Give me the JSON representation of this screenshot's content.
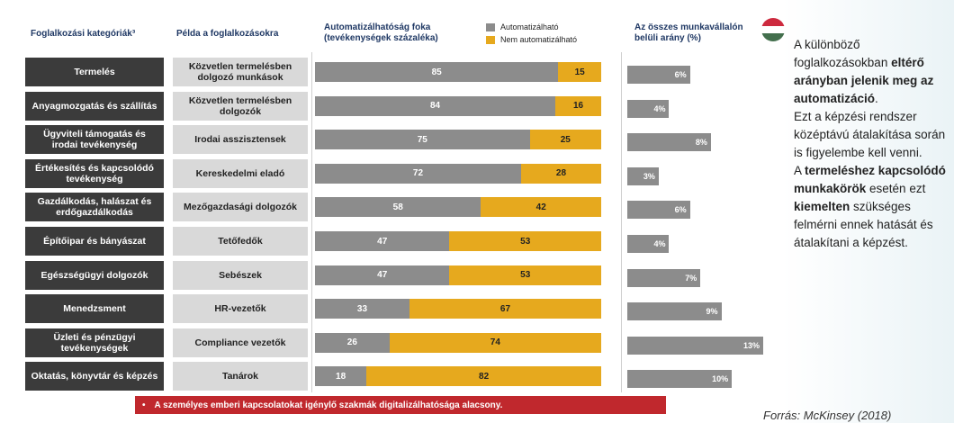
{
  "headers": {
    "category": "Foglalkozási kategóriák³",
    "example": "Példa a foglalkozásokra"
  },
  "chart_data": [
    {
      "type": "stacked_bar_h",
      "title": "Automatizálhatóság foka (tevékenységek százaléka)",
      "categories": [
        "Termelés",
        "Anyagmozgatás és szállítás",
        "Ügyviteli támogatás és irodai tevékenység",
        "Értékesítés és kapcsolódó tevékenység",
        "Gazdálkodás, halászat és erdőgazdálkodás",
        "Építőipar és bányászat",
        "Egészségügyi dolgozók",
        "Menedzsment",
        "Üzleti és pénzügyi tevékenységek",
        "Oktatás, könyvtár és képzés"
      ],
      "examples": [
        "Közvetlen termelésben dolgozó munkások",
        "Közvetlen termelésben dolgozók",
        "Irodai asszisztensek",
        "Kereskedelmi eladó",
        "Mezőgazdasági dolgozók",
        "Tetőfedők",
        "Sebészek",
        "HR-vezetők",
        "Compliance vezetők",
        "Tanárok"
      ],
      "series": [
        {
          "name": "Automatizálható",
          "color": "#8c8c8c",
          "values": [
            85,
            84,
            75,
            72,
            58,
            47,
            47,
            33,
            26,
            18
          ]
        },
        {
          "name": "Nem automatizálható",
          "color": "#e6a91e",
          "values": [
            15,
            16,
            25,
            28,
            42,
            53,
            53,
            67,
            74,
            82
          ]
        }
      ],
      "xlim": [
        0,
        100
      ]
    },
    {
      "type": "bar_h",
      "title": "Az összes munkavállalón belüli arány (%)",
      "values": [
        6,
        4,
        8,
        3,
        6,
        4,
        7,
        9,
        13,
        10
      ],
      "value_labels": [
        "6%",
        "4%",
        "8%",
        "3%",
        "6%",
        "4%",
        "7%",
        "9%",
        "13%",
        "10%"
      ],
      "color": "#8c8c8c",
      "xlim": [
        0,
        13
      ]
    }
  ],
  "sidebar": [
    [
      {
        "text": "A különböző foglalkozásokban "
      },
      {
        "text": "eltérő arányban jelenik meg az automatizáció",
        "bold": true
      },
      {
        "text": "."
      }
    ],
    [
      {
        "text": "Ezt a képzési rendszer középtávú átalakítása során is figyelembe kell venni."
      }
    ],
    [
      {
        "text": "A "
      },
      {
        "text": "termeléshez kapcsolódó munkakörök",
        "bold": true
      },
      {
        "text": " esetén ezt "
      },
      {
        "text": "kiemelten",
        "bold": true
      },
      {
        "text": " szükséges felmérni ennek hatását és átalakítani a képzést."
      }
    ]
  ],
  "footer": "A személyes emberi kapcsolatokat igénylő szakmák digitalizálhatósága alacsony.",
  "source": "Forrás: McKinsey (2018)"
}
